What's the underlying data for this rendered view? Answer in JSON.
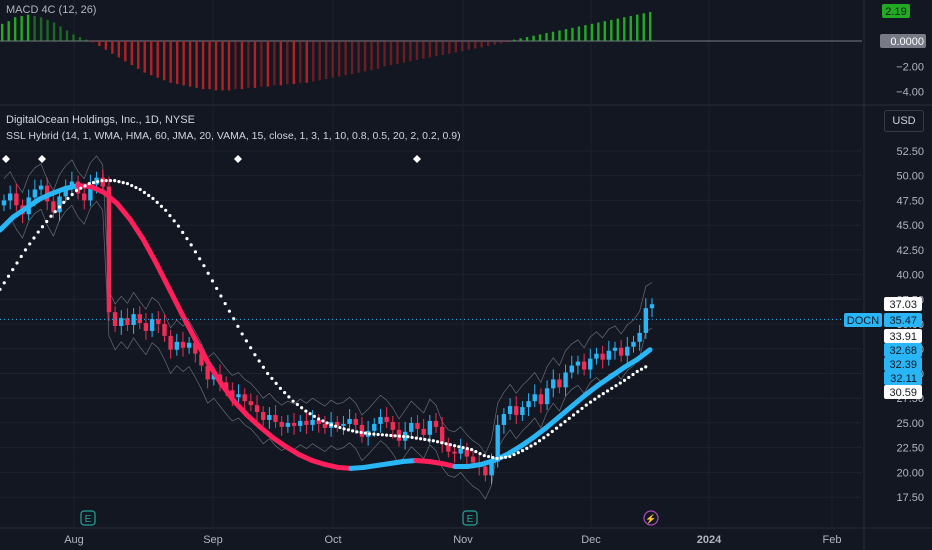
{
  "macd_panel": {
    "title": "MACD 4C (12, 26)",
    "axis": {
      "ticks": [
        "−2.00",
        "−4.00"
      ],
      "current": "2.19",
      "zero": "0.0000"
    }
  },
  "price_panel": {
    "title": "DigitalOcean Holdings, Inc., 1D, NYSE",
    "indicator": "SSL Hybrid (14, 1, WMA, HMA, 60, JMA, 20, VAMA, 15, close, 1, 3, 1, 10, 0.8, 0.5, 20, 2, 0.2, 0.9)",
    "currency": "USD",
    "ticker": "DOCN"
  },
  "chart_data": [
    {
      "type": "bar",
      "series": [
        {
          "name": "MACD 4C (12, 26)",
          "last": 2.19
        }
      ],
      "values": [
        1.3,
        1.5,
        1.8,
        1.9,
        2.0,
        1.9,
        1.8,
        1.6,
        1.4,
        1.1,
        0.8,
        0.5,
        0.3,
        0.1,
        -0.1,
        -0.4,
        -0.7,
        -1.0,
        -1.3,
        -1.6,
        -1.9,
        -2.2,
        -2.5,
        -2.7,
        -2.9,
        -3.1,
        -3.3,
        -3.4,
        -3.5,
        -3.6,
        -3.7,
        -3.8,
        -3.8,
        -3.9,
        -3.9,
        -3.9,
        -3.8,
        -3.8,
        -3.7,
        -3.7,
        -3.6,
        -3.6,
        -3.5,
        -3.5,
        -3.4,
        -3.4,
        -3.3,
        -3.3,
        -3.2,
        -3.1,
        -3.0,
        -2.9,
        -2.8,
        -2.7,
        -2.6,
        -2.5,
        -2.4,
        -2.3,
        -2.2,
        -2.0,
        -1.9,
        -1.8,
        -1.7,
        -1.6,
        -1.5,
        -1.4,
        -1.3,
        -1.2,
        -1.1,
        -1.0,
        -0.9,
        -0.8,
        -0.7,
        -0.6,
        -0.5,
        -0.4,
        -0.3,
        -0.2,
        -0.1,
        0.1,
        0.2,
        0.3,
        0.4,
        0.5,
        0.6,
        0.7,
        0.8,
        0.9,
        1.0,
        1.1,
        1.2,
        1.3,
        1.4,
        1.5,
        1.6,
        1.7,
        1.8,
        1.9,
        2.0,
        2.1,
        2.19
      ],
      "ylim": [
        -4.5,
        2.5
      ],
      "ticks": [
        -2.0,
        -4.0
      ],
      "colors": {
        "positive": "#22ab22",
        "negative": "#b22222"
      }
    },
    {
      "type": "candlestick",
      "title": "DigitalOcean Holdings, Inc., 1D, NYSE",
      "x_ticks": [
        "Aug",
        "Sep",
        "Oct",
        "Nov",
        "Dec",
        "2024",
        "Feb"
      ],
      "y_ticks": [
        17.5,
        20.0,
        22.5,
        25.0,
        27.5,
        30.0,
        32.5,
        35.0,
        37.5,
        40.0,
        42.5,
        45.0,
        47.5,
        50.0,
        52.5
      ],
      "ylim": [
        16.0,
        55.0
      ],
      "last_price": 35.47,
      "price_labels": [
        37.03,
        35.47,
        33.91,
        32.68,
        32.39,
        32.11,
        30.59
      ],
      "closes": [
        47.5,
        48.2,
        47.0,
        46.1,
        47.8,
        48.6,
        49.0,
        47.4,
        46.3,
        47.9,
        48.8,
        49.4,
        48.2,
        47.5,
        49.1,
        49.8,
        48.9,
        36.2,
        34.8,
        35.6,
        34.9,
        36.0,
        35.1,
        34.3,
        35.5,
        35.0,
        33.8,
        32.4,
        33.2,
        32.6,
        33.1,
        32.0,
        30.8,
        29.4,
        29.9,
        29.1,
        28.3,
        27.6,
        27.9,
        27.2,
        26.8,
        26.1,
        25.3,
        25.8,
        25.1,
        24.6,
        25.0,
        24.7,
        25.2,
        24.8,
        25.3,
        24.9,
        24.5,
        25.1,
        24.7,
        24.9,
        25.4,
        24.8,
        23.6,
        24.2,
        24.9,
        25.6,
        25.1,
        24.3,
        23.2,
        24.1,
        25.0,
        24.4,
        23.8,
        25.2,
        24.6,
        22.9,
        22.1,
        21.9,
        22.4,
        21.6,
        21.0,
        20.6,
        19.7,
        21.1,
        24.8,
        25.9,
        26.7,
        25.8,
        26.6,
        27.2,
        27.9,
        26.9,
        28.5,
        29.4,
        28.6,
        30.1,
        30.8,
        31.2,
        30.4,
        31.5,
        32.0,
        31.4,
        32.3,
        32.6,
        31.8,
        32.7,
        33.2,
        34.1,
        36.6,
        37.0
      ],
      "ssl_baseline": [
        44.5,
        45.8,
        46.7,
        47.6,
        48.2,
        48.7,
        49.0,
        48.9,
        48.3,
        47.2,
        45.6,
        43.6,
        41.2,
        38.6,
        36.0,
        33.5,
        31.1,
        29.0,
        27.2,
        25.8,
        24.6,
        23.5,
        22.6,
        21.8,
        21.2,
        20.8,
        20.5,
        20.4,
        20.5,
        20.7,
        20.9,
        21.1,
        21.2,
        21.1,
        20.9,
        20.6,
        20.6,
        20.8,
        21.2,
        21.8,
        22.6,
        23.5,
        24.5,
        25.6,
        26.7,
        27.8,
        28.8,
        29.7,
        30.6,
        31.4,
        32.4
      ],
      "ssl_baseline_colors": {
        "up": "#29b6f6",
        "down": "#ff1f5a"
      },
      "trail_dots": [
        38.5,
        40.5,
        42.5,
        44.3,
        45.9,
        47.3,
        48.5,
        49.2,
        49.5,
        49.5,
        49.2,
        48.6,
        47.7,
        46.5,
        44.9,
        43.0,
        40.9,
        38.6,
        36.3,
        34.0,
        31.9,
        30.0,
        28.5,
        27.2,
        26.2,
        25.4,
        24.8,
        24.4,
        24.1,
        23.9,
        23.8,
        23.7,
        23.6,
        23.4,
        23.2,
        22.9,
        22.6,
        22.3,
        21.7,
        21.4,
        21.6,
        22.2,
        22.9,
        23.8,
        24.8,
        25.8,
        26.8,
        27.7,
        28.5,
        29.3,
        30.2,
        30.9
      ],
      "colors": {
        "up": "#29b6f6",
        "down": "#ef2d56"
      }
    }
  ]
}
